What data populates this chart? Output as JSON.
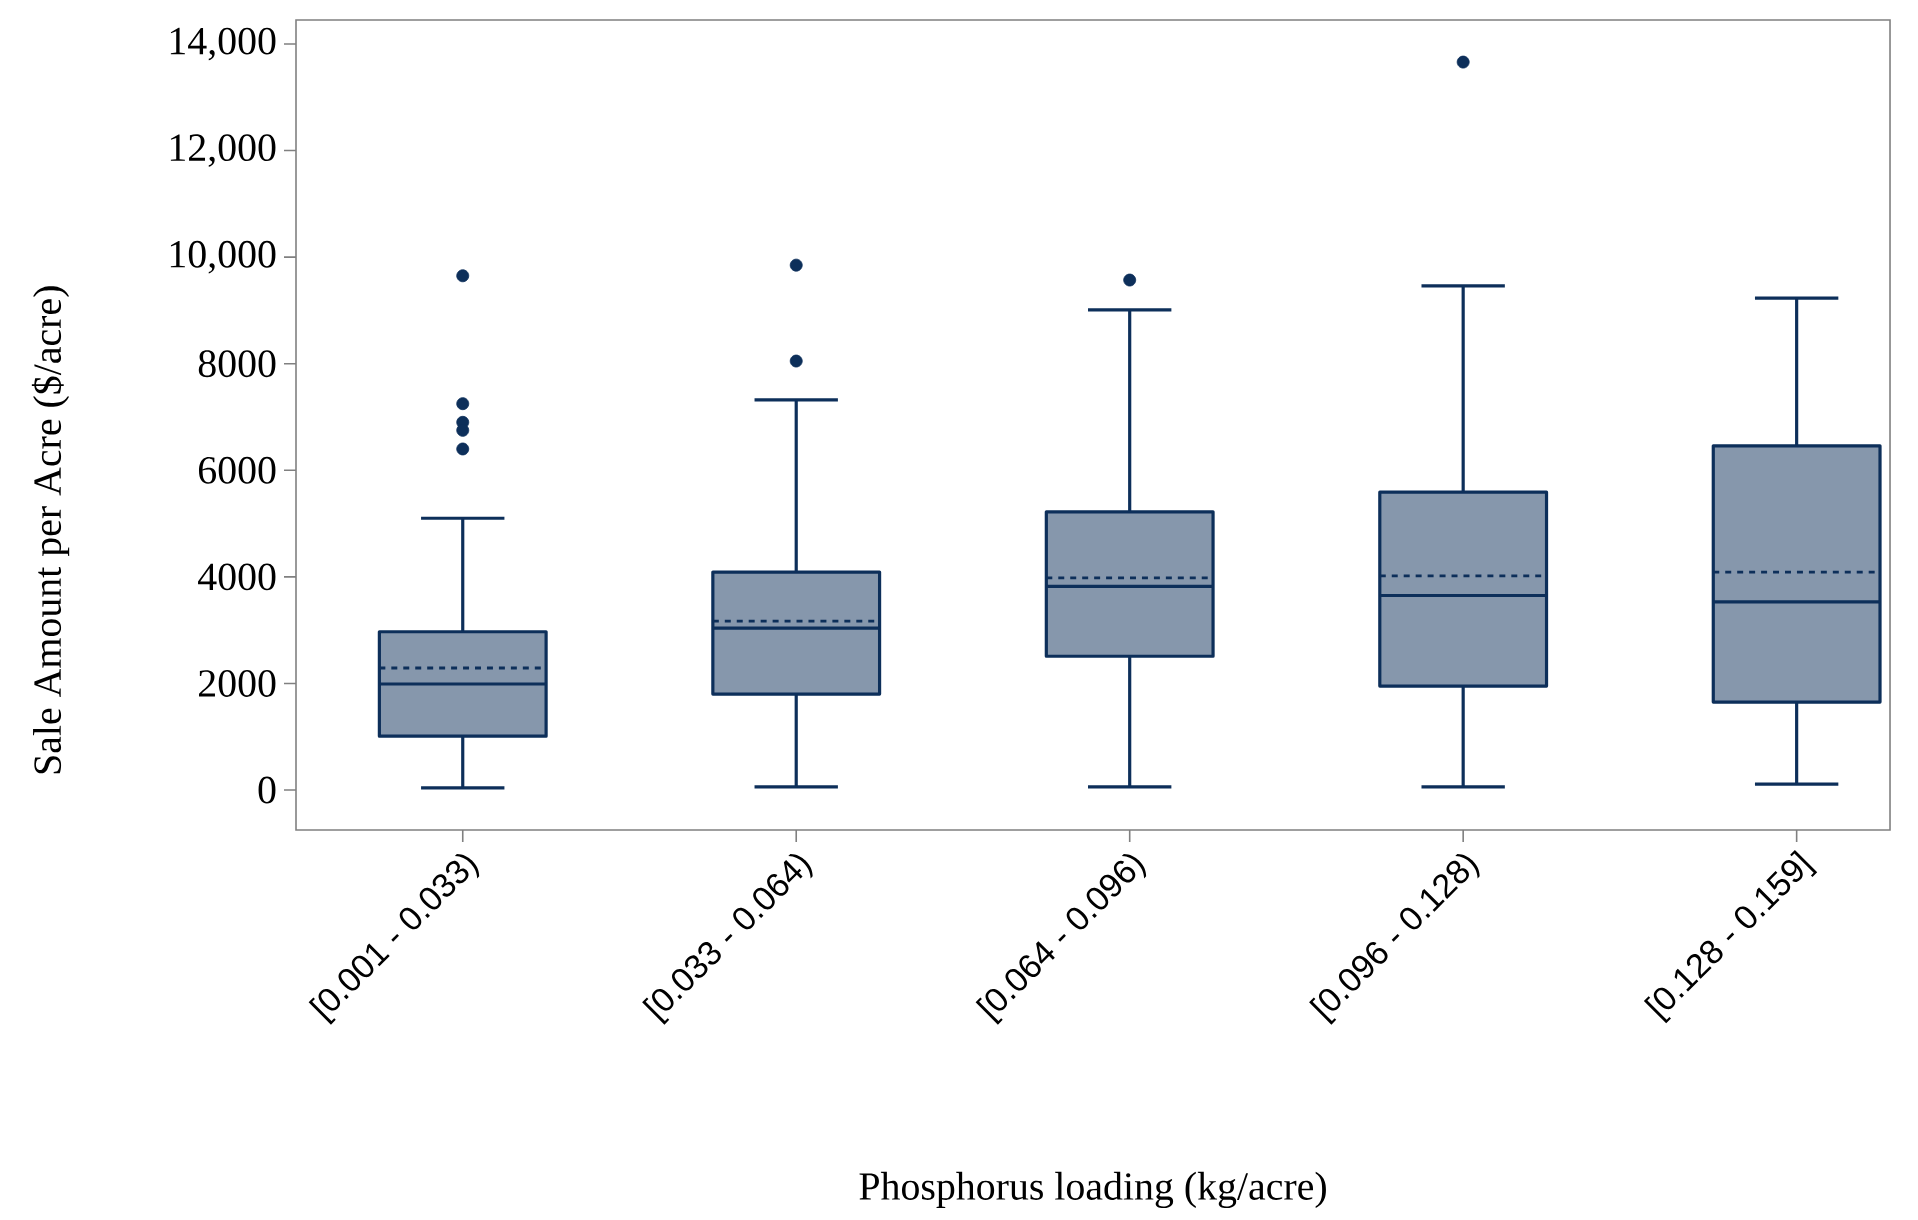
{
  "chart_data": {
    "type": "box",
    "xlabel": "Phosphorus loading (kg/acre)",
    "ylabel": "Sale Amount per Acre ($/acre)",
    "categories": [
      "[0.001 - 0.033)",
      "[0.033 - 0.064)",
      "[0.064 - 0.096)",
      "[0.096 - 0.128)",
      "[0.128 - 0.159]"
    ],
    "boxes": [
      {
        "low": 40,
        "q1": 1010,
        "median": 1990,
        "q3": 2970,
        "high": 5100,
        "mean": 2290,
        "outliers": [
          9650,
          7250,
          6900,
          6750,
          6400
        ]
      },
      {
        "low": 60,
        "q1": 1800,
        "median": 3040,
        "q3": 4090,
        "high": 7320,
        "mean": 3170,
        "outliers": [
          9850,
          8050
        ]
      },
      {
        "low": 60,
        "q1": 2510,
        "median": 3820,
        "q3": 5220,
        "high": 9010,
        "mean": 3980,
        "outliers": [
          9570
        ]
      },
      {
        "low": 60,
        "q1": 1950,
        "median": 3650,
        "q3": 5590,
        "high": 9460,
        "mean": 4020,
        "outliers": [
          13660
        ]
      },
      {
        "low": 110,
        "q1": 1650,
        "median": 3530,
        "q3": 6460,
        "high": 9230,
        "mean": 4090
      }
    ],
    "color": "#0d2f5a",
    "marker": "circle",
    "ylim": [
      -750,
      14450
    ],
    "yticks": [
      0,
      2000,
      4000,
      6000,
      8000,
      {
        "value": 10000,
        "label": "10,000"
      },
      {
        "value": 12000,
        "label": "12,000"
      },
      {
        "value": 14000,
        "label": "14,000"
      }
    ]
  }
}
